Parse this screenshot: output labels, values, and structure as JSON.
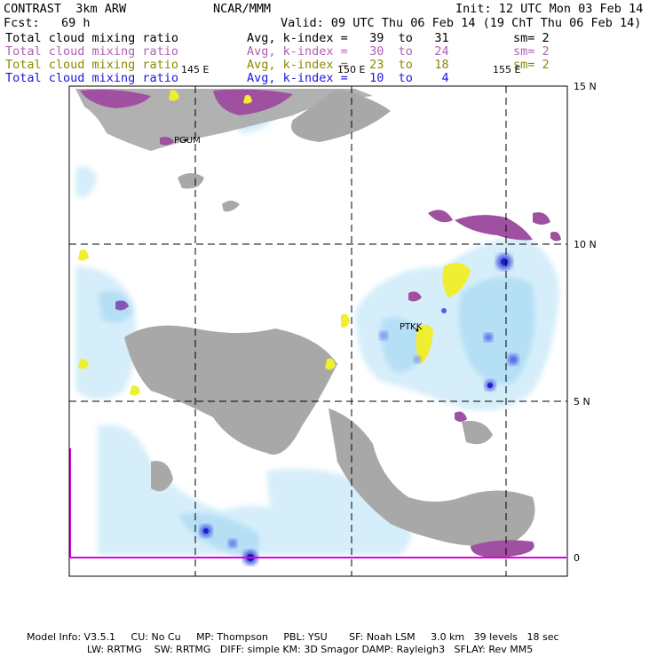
{
  "header": {
    "model": "CONTRAST  3km ARW",
    "org": "NCAR/MMM",
    "init": "Init: 12 UTC Mon 03 Feb 14",
    "fcst": "Fcst:   69 h",
    "valid": "Valid: 09 UTC Thu 06 Feb 14 (19 ChT Thu 06 Feb 14)"
  },
  "fields": [
    {
      "name": "Total cloud mixing ratio",
      "stat": "Avg, k-index =   39  to   31",
      "sm": "sm= 2",
      "color": "#000000"
    },
    {
      "name": "Total cloud mixing ratio",
      "stat": "Avg, k-index =   30  to   24",
      "sm": "sm= 2",
      "color": "#b060b0"
    },
    {
      "name": "Total cloud mixing ratio",
      "stat": "Avg, k-index =   23  to   18",
      "sm": "sm= 2",
      "color": "#8a8a00"
    },
    {
      "name": "Total cloud mixing ratio",
      "stat": "Avg, k-index =   10  to    4",
      "sm": "",
      "color": "#1818e0"
    }
  ],
  "map": {
    "lon_labels": [
      "145 E",
      "150 E",
      "155 E"
    ],
    "lat_labels": [
      "15 N",
      "10 N",
      "5 N",
      "0"
    ],
    "stations": [
      "PGUM",
      "PTKK"
    ]
  },
  "footer": {
    "line1": "Model Info: V3.5.1     CU: No Cu     MP: Thompson     PBL: YSU       SF: Noah LSM     3.0 km   39 levels   18 sec",
    "line2": "LW: RRTMG    SW: RRTMG   DIFF: simple KM: 3D Smagor DAMP: Rayleigh3   SFLAY: Rev MM5"
  }
}
